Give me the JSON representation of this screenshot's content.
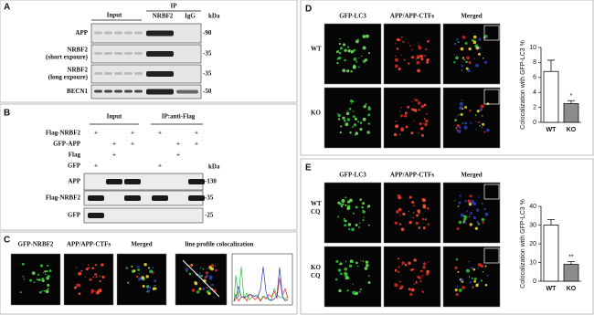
{
  "panels": {
    "a": {
      "letter": "A",
      "input": "Input",
      "ip": "IP",
      "ip_lanes": [
        "NRBF2",
        "IgG"
      ],
      "kda": "kDa",
      "rows": [
        {
          "label": "APP",
          "marker": "-90"
        },
        {
          "label": "NRBF2",
          "sublabel": "(short expoure)",
          "marker": "-35"
        },
        {
          "label": "NRBF2",
          "sublabel": "(long expoure)",
          "marker": "-35"
        },
        {
          "label": "BECN1",
          "marker": "-50"
        }
      ]
    },
    "b": {
      "letter": "B",
      "input": "Input",
      "ip": "IP:anti-Flag",
      "kda": "kDa",
      "conditions": [
        {
          "label": "Flag-NRBF2",
          "marks": [
            "+",
            null,
            "+",
            "+",
            null,
            "+"
          ]
        },
        {
          "label": "GFP-APP",
          "marks": [
            null,
            "+",
            "+",
            null,
            "+",
            "+"
          ]
        },
        {
          "label": "Flag",
          "marks": [
            null,
            "+",
            null,
            null,
            "+",
            null
          ]
        },
        {
          "label": "GFP",
          "marks": [
            "+",
            null,
            null,
            "+",
            null,
            null
          ]
        }
      ],
      "blots": [
        {
          "label": "APP",
          "marker": "-130"
        },
        {
          "label": "Flag-NRBF2",
          "marker": "-35"
        },
        {
          "label": "GFP",
          "marker": "-25"
        }
      ]
    },
    "c": {
      "letter": "C",
      "channels": [
        "GFP-NRBF2",
        "APP/APP-CTFs",
        "Merged"
      ],
      "profile": "line profile colocalization"
    },
    "d": {
      "letter": "D",
      "channels": [
        "GFP-LC3",
        "APP/APP-CTFs",
        "Merged"
      ],
      "rows": [
        [
          "WT"
        ],
        [
          "KO"
        ]
      ]
    },
    "e": {
      "letter": "E",
      "channels": [
        "GFP-LC3",
        "APP/APP-CTFs",
        "Merged"
      ],
      "rows": [
        [
          "WT",
          "CQ"
        ],
        [
          "KO",
          "CQ"
        ]
      ]
    }
  },
  "chart_data": [
    {
      "type": "bar",
      "y_label": "Colocalization with GFP-LC3 %",
      "categories": [
        "WT",
        "KO"
      ],
      "values": [
        6.8,
        2.5
      ],
      "errors": [
        1.5,
        0.4
      ],
      "annotations": [
        null,
        "*"
      ],
      "colors": [
        "#ffffff",
        "#8c8c8c"
      ],
      "ylim": [
        0,
        10
      ],
      "yticks": [
        0,
        2,
        4,
        6,
        8,
        10
      ]
    },
    {
      "type": "bar",
      "y_label": "Colocalization with GFP-LC3 %",
      "categories": [
        "WT",
        "KO"
      ],
      "values": [
        30,
        9
      ],
      "errors": [
        3,
        1.5
      ],
      "annotations": [
        null,
        "**"
      ],
      "colors": [
        "#ffffff",
        "#8c8c8c"
      ],
      "ylim": [
        0,
        40
      ],
      "yticks": [
        0,
        10,
        20,
        30,
        40
      ]
    }
  ]
}
